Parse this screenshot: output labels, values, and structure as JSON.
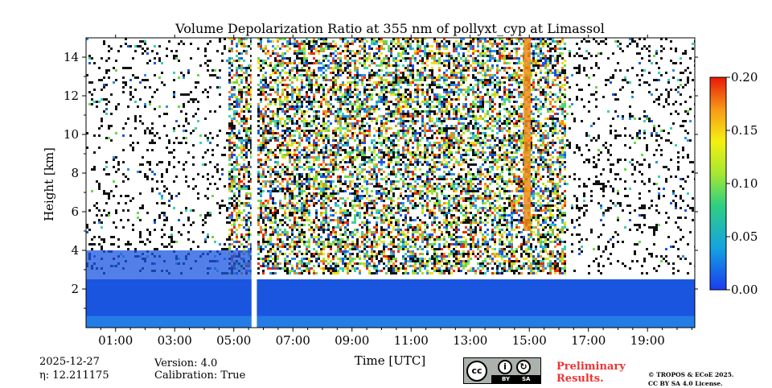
{
  "chart_data": {
    "type": "heatmap",
    "title": "Volume Depolarization Ratio at 355 nm of pollyxt_cyp at Limassol",
    "xlabel": "Time [UTC]",
    "ylabel": "Height [km]",
    "xlim_hours": [
      0.0,
      20.6
    ],
    "ylim_km": [
      0,
      15
    ],
    "xticks": [
      "01:00",
      "03:00",
      "05:00",
      "07:00",
      "09:00",
      "11:00",
      "13:00",
      "15:00",
      "17:00",
      "19:00"
    ],
    "xtick_hours": [
      1,
      3,
      5,
      7,
      9,
      11,
      13,
      15,
      17,
      19
    ],
    "yticks": [
      "2",
      "4",
      "6",
      "8",
      "10",
      "12",
      "14"
    ],
    "ytick_values": [
      2,
      4,
      6,
      8,
      10,
      12,
      14
    ],
    "colorbar": {
      "min": 0.0,
      "max": 0.2,
      "ticks": [
        "0.00",
        "0.05",
        "0.10",
        "0.15",
        "0.20"
      ],
      "tick_values": [
        0.0,
        0.05,
        0.1,
        0.15,
        0.2
      ]
    },
    "no_data_gaps_hours": [
      [
        5.6,
        5.78
      ]
    ],
    "features": {
      "boundary_layer_top_km": 2.5,
      "high_depolarization_column_hours": [
        14.8,
        15.05
      ],
      "high_depolarization_value": 0.17
    }
  },
  "footer": {
    "date": "2025-12-27",
    "eta_label": "η: 12.211175",
    "version": "Version: 4.0",
    "calibration": "Calibration: True",
    "preliminary": "Preliminary\nResults.",
    "copyright_line1": "© TROPOS & ECoE 2025.",
    "copyright_line2": "CC BY SA 4.0 License.",
    "cc_mark": "cc",
    "cc_by": "BY",
    "cc_sa": "SA"
  },
  "colors": {
    "low": "#1a55e0",
    "mid": "#66d94a",
    "high": "#ee2a00",
    "no_data": "#ffffff"
  }
}
